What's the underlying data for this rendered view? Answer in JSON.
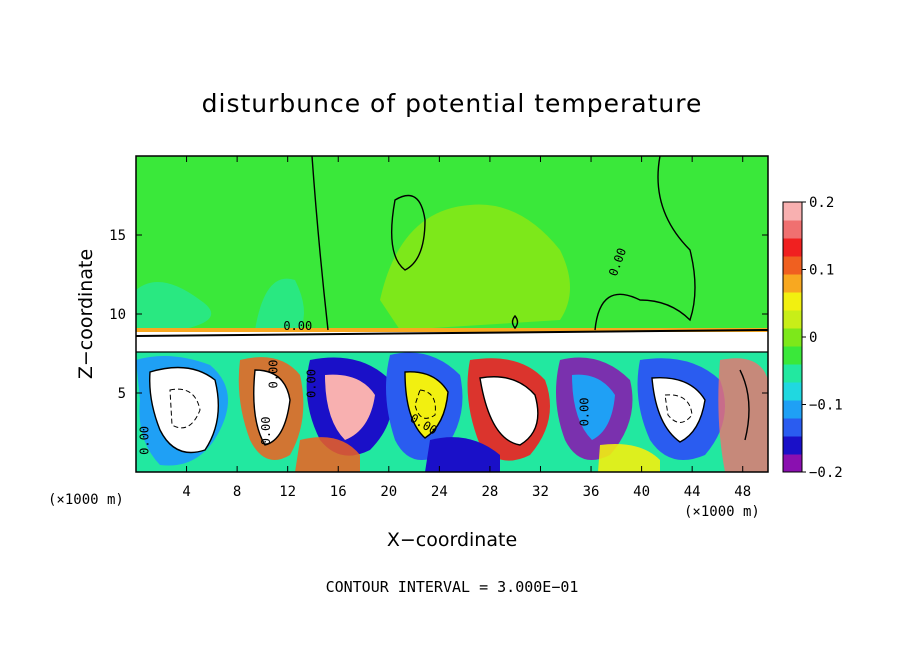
{
  "chart_data": {
    "type": "heatmap",
    "title": "disturbunce of potential temperature",
    "xlabel": "X−coordinate",
    "ylabel": "Z−coordinate",
    "x_unit": "(×1000 m)",
    "z_unit": "(×1000 m)",
    "xlim": [
      0,
      50
    ],
    "ylim": [
      0,
      20
    ],
    "x_ticks": [
      4,
      8,
      12,
      16,
      20,
      24,
      28,
      32,
      36,
      40,
      44,
      48
    ],
    "x_tick_labels": [
      "4",
      "8",
      "12",
      "16",
      "20",
      "24",
      "28",
      "32",
      "36",
      "40",
      "44",
      "48"
    ],
    "y_ticks": [
      5,
      10,
      15
    ],
    "y_tick_labels": [
      "5",
      "10",
      "15"
    ],
    "colorbar": {
      "min": -0.2,
      "max": 0.2,
      "ticks": [
        0.2,
        0.1,
        0,
        -0.1,
        -0.2
      ],
      "tick_labels": [
        "0.2",
        "0.1",
        "0",
        "−0.1",
        "−0.2"
      ],
      "colors": [
        "#8a10b0",
        "#1a10c8",
        "#2a5cf0",
        "#1fa0f5",
        "#20d8e0",
        "#22e8a0",
        "#3ae83a",
        "#7de81a",
        "#c8ee18",
        "#f2f010",
        "#f8a820",
        "#f06020",
        "#f02020",
        "#f07070",
        "#f8b0b0"
      ]
    },
    "contour_interval_text": "CONTOUR INTERVAL = 3.000E−01",
    "contour_labels": [
      "0.00",
      "0.00",
      "0.00",
      "0.00",
      "0.00",
      "0.00",
      "0.00",
      "0.00"
    ],
    "background_color": "#3ae83a",
    "grid": false,
    "legend": "colorbar right"
  }
}
